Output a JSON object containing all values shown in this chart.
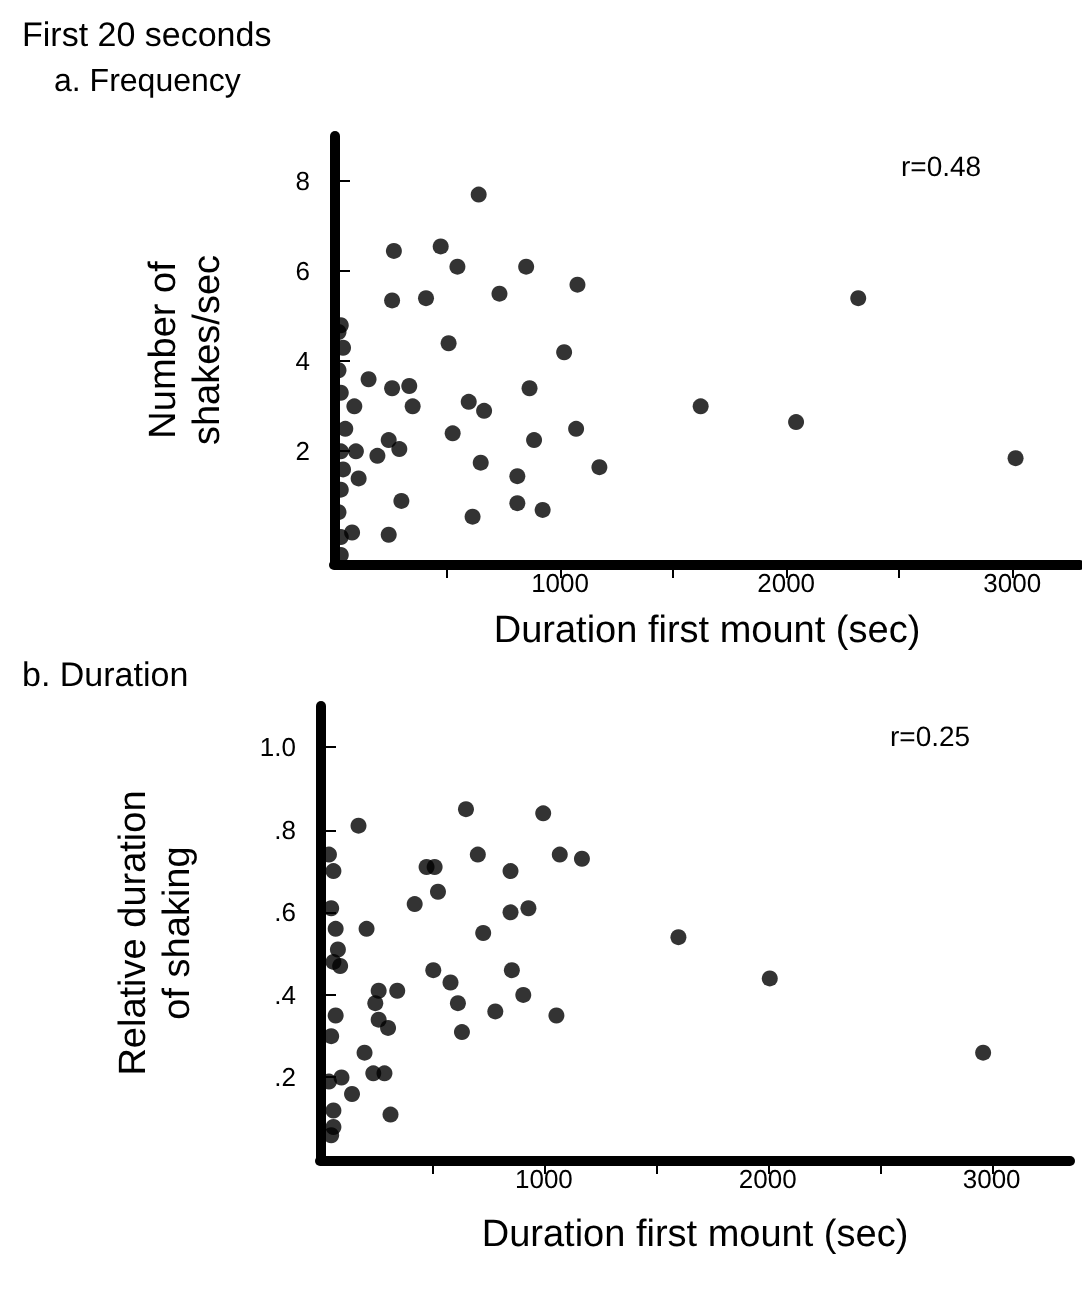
{
  "chart_data": [
    {
      "type": "scatter",
      "title": "First 20 seconds",
      "subtitle": "a. Frequency",
      "xlabel": "Duration first mount (sec)",
      "ylabel": "Number of\nshakes/sec",
      "marker": "circle",
      "grid": false,
      "annotations": [
        "r=0.48"
      ],
      "xlim": [
        0,
        3300
      ],
      "ylim": [
        -0.5,
        9
      ],
      "xticks": [
        {
          "value": 500,
          "label": null
        },
        1000,
        {
          "value": 1500,
          "label": null
        },
        2000,
        {
          "value": 2500,
          "label": null
        },
        3000
      ],
      "yticks": [
        2,
        4,
        6,
        8
      ],
      "x": [
        640,
        265,
        472,
        546,
        850,
        1077,
        257,
        407,
        732,
        507,
        1018,
        153,
        257,
        333,
        348,
        596,
        664,
        865,
        1071,
        525,
        242,
        289,
        885,
        192,
        97,
        649,
        1174,
        109,
        811,
        298,
        811,
        923,
        613,
        242,
        80,
        30,
        20,
        40,
        20,
        30,
        90,
        50,
        30,
        40,
        30,
        20,
        30,
        30,
        1622,
        2044,
        2319,
        3015
      ],
      "series": [
        {
          "color": "#000000",
          "values": [
            7.7,
            6.45,
            6.55,
            6.1,
            6.1,
            5.7,
            5.35,
            5.4,
            5.5,
            4.4,
            4.2,
            3.6,
            3.4,
            3.45,
            3.0,
            3.1,
            2.9,
            3.4,
            2.5,
            2.4,
            2.25,
            2.05,
            2.25,
            1.9,
            2.0,
            1.75,
            1.65,
            1.4,
            1.45,
            0.9,
            0.85,
            0.7,
            0.55,
            0.15,
            0.2,
            4.8,
            4.65,
            4.3,
            3.8,
            3.3,
            3.0,
            2.5,
            2.0,
            1.6,
            1.15,
            0.65,
            0.1,
            -0.3,
            3.0,
            2.65,
            5.4,
            1.85
          ]
        }
      ]
    },
    {
      "type": "scatter",
      "title": "b. Duration",
      "xlabel": "Duration first mount (sec)",
      "ylabel": "Relative duration\nof shaking",
      "marker": "circle",
      "grid": false,
      "annotations": [
        "r=0.25"
      ],
      "xlim": [
        0,
        3350
      ],
      "ylim": [
        0,
        1.1
      ],
      "xticks": [
        {
          "value": 500,
          "label": null
        },
        1000,
        {
          "value": 1500,
          "label": null
        },
        2000,
        {
          "value": 2500,
          "label": null
        },
        3000
      ],
      "yticks": [
        {
          "value": 0.2,
          "label": ".2"
        },
        {
          "value": 0.4,
          "label": ".4"
        },
        {
          "value": 0.6,
          "label": ".6"
        },
        {
          "value": 0.8,
          "label": ".8"
        },
        {
          "value": 1,
          "label": "1.0"
        }
      ],
      "x": [
        652,
        997,
        172,
        705,
        1071,
        1170,
        476,
        512,
        851,
        527,
        423,
        931,
        851,
        729,
        208,
        506,
        583,
        857,
        616,
        908,
        345,
        262,
        247,
        783,
        1056,
        634,
        262,
        304,
        199,
        238,
        288,
        96,
        143,
        315,
        60,
        40,
        60,
        50,
        70,
        80,
        60,
        90,
        70,
        50,
        40,
        60,
        50,
        1601,
        2009,
        2962
      ],
      "series": [
        {
          "color": "#000000",
          "values": [
            0.85,
            0.84,
            0.81,
            0.74,
            0.74,
            0.73,
            0.71,
            0.71,
            0.7,
            0.65,
            0.62,
            0.61,
            0.6,
            0.55,
            0.56,
            0.46,
            0.43,
            0.46,
            0.38,
            0.4,
            0.41,
            0.41,
            0.38,
            0.36,
            0.35,
            0.31,
            0.34,
            0.32,
            0.26,
            0.21,
            0.21,
            0.2,
            0.16,
            0.11,
            0.08,
            0.74,
            0.7,
            0.61,
            0.56,
            0.51,
            0.48,
            0.47,
            0.35,
            0.3,
            0.19,
            0.12,
            0.06,
            0.54,
            0.44,
            0.26
          ]
        }
      ]
    }
  ]
}
